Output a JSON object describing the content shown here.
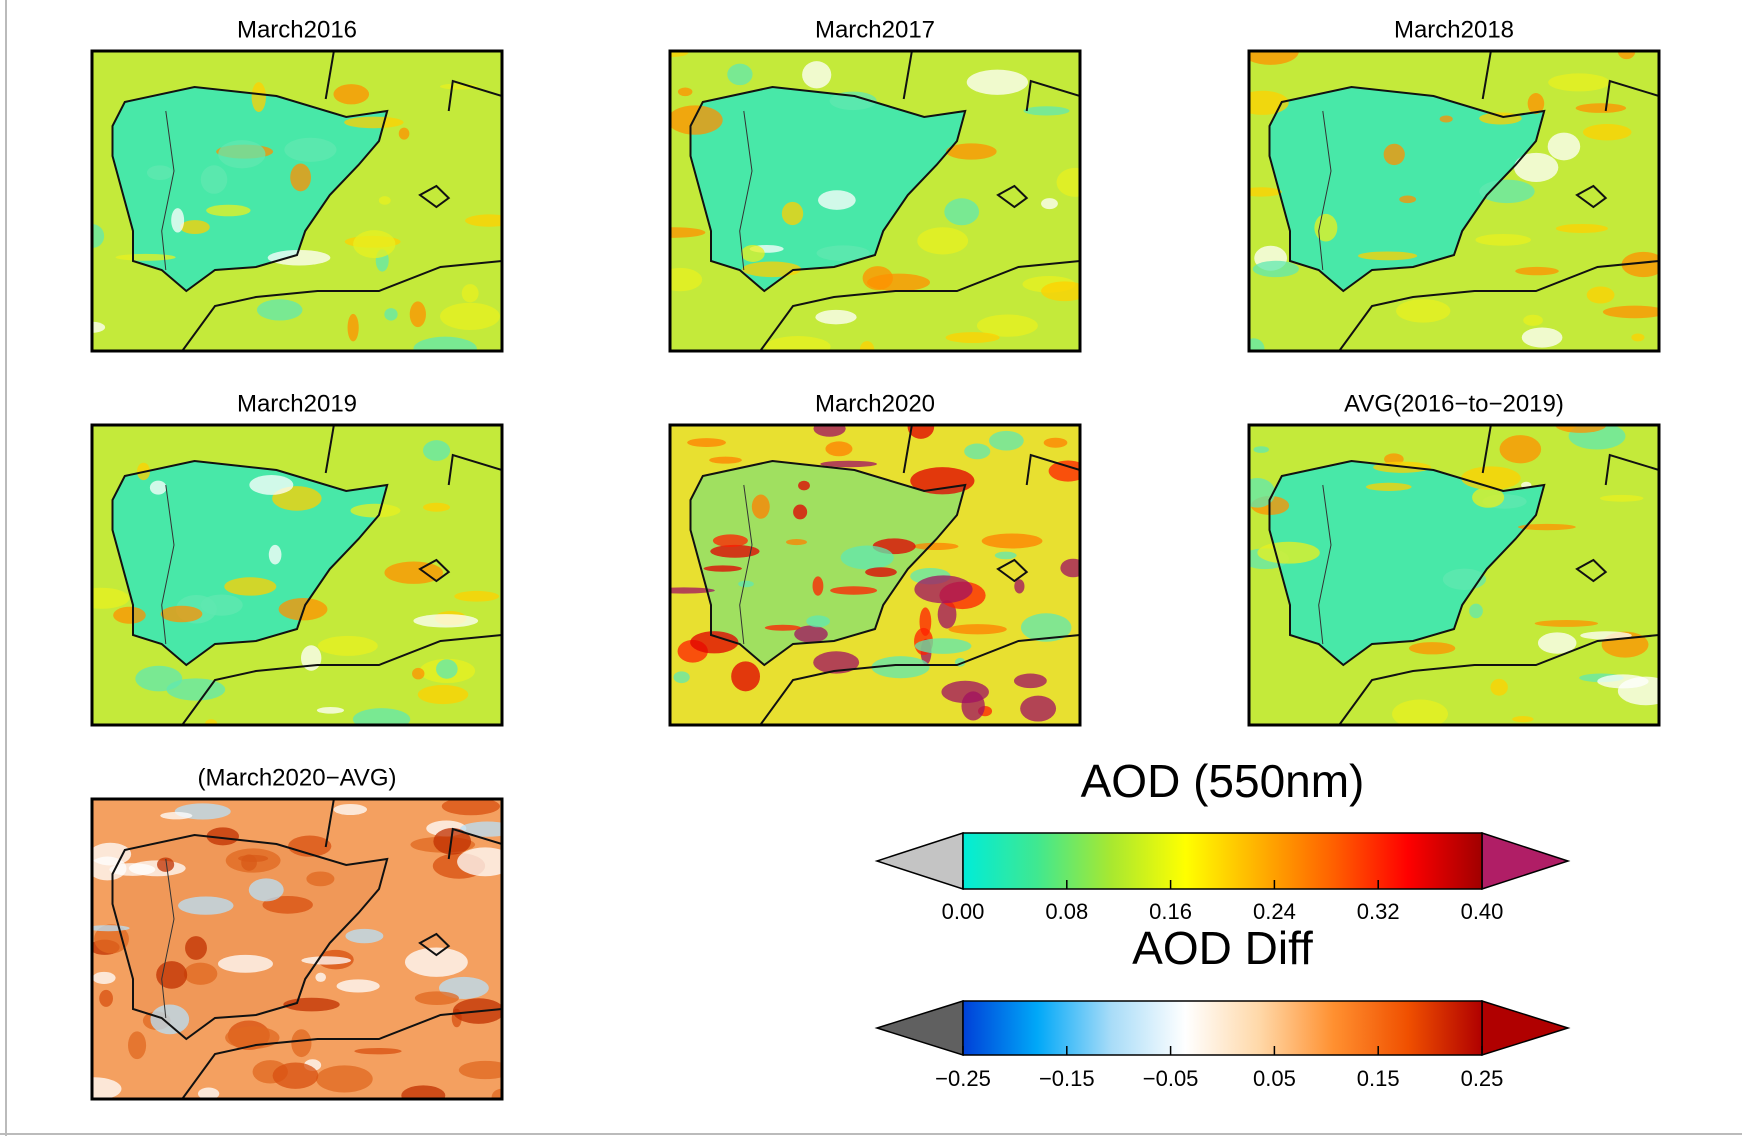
{
  "panels": [
    {
      "title": "March2016"
    },
    {
      "title": "March2017"
    },
    {
      "title": "March2018"
    },
    {
      "title": "March2019"
    },
    {
      "title": "March2020"
    },
    {
      "title": "AVG(2016−to−2019)"
    },
    {
      "title": "(March2020−AVG)"
    }
  ],
  "colorbars": [
    {
      "title": "AOD (550nm)",
      "lim": [
        0,
        0.4
      ],
      "ticks": [
        {
          "value": 0,
          "label": "0.00"
        },
        {
          "value": 0.08,
          "label": "0.08"
        },
        {
          "value": 0.16,
          "label": "0.16"
        },
        {
          "value": 0.24,
          "label": "0.24"
        },
        {
          "value": 0.32,
          "label": "0.32"
        },
        {
          "value": 0.4,
          "label": "0.40"
        }
      ],
      "colors": [
        "#00ecd8",
        "#40e890",
        "#a8e830",
        "#ffff00",
        "#ffb000",
        "#ff6000",
        "#ff0000",
        "#a00000"
      ],
      "under": "#c4c4c4",
      "over": "#b01e66"
    },
    {
      "title": "AOD Diff",
      "lim": [
        -0.25,
        0.25
      ],
      "ticks": [
        {
          "value": -0.25,
          "label": "−0.25"
        },
        {
          "value": -0.15,
          "label": "−0.15"
        },
        {
          "value": -0.05,
          "label": "−0.05"
        },
        {
          "value": 0.05,
          "label": "0.05"
        },
        {
          "value": 0.15,
          "label": "0.15"
        },
        {
          "value": 0.25,
          "label": "0.25"
        }
      ],
      "colors": [
        "#0040d8",
        "#00a8f8",
        "#a8dcf8",
        "#ffffff",
        "#ffd8a8",
        "#ff9030",
        "#f05000",
        "#b00000"
      ],
      "under": "#606060",
      "over": "#b00000"
    }
  ]
}
